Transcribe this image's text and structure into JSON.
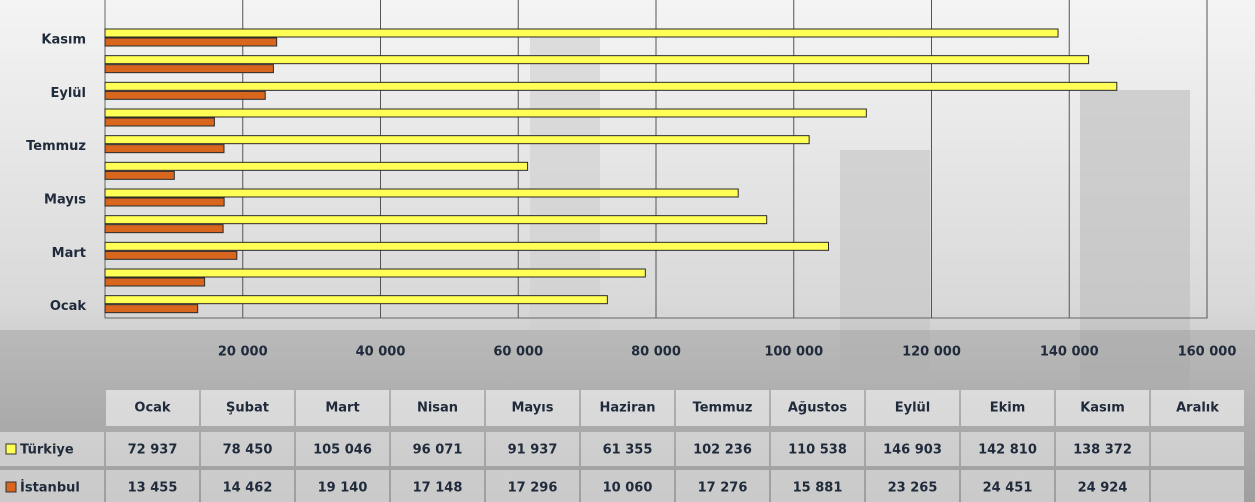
{
  "chart_data": {
    "type": "hbar",
    "categories": [
      "Ocak",
      "Şubat",
      "Mart",
      "Nisan",
      "Mayıs",
      "Haziran",
      "Temmuz",
      "Ağustos",
      "Eylül",
      "Ekim",
      "Kasım",
      "Aralık"
    ],
    "series": [
      {
        "name": "Türkiye",
        "color": "#ffff55",
        "values": [
          72937,
          78450,
          105046,
          96071,
          91937,
          61355,
          102236,
          110538,
          146903,
          142810,
          138372,
          null
        ],
        "value_labels": [
          "72 937",
          "78 450",
          "105 046",
          "96 071",
          "91 937",
          "61 355",
          "102 236",
          "110 538",
          "146 903",
          "142 810",
          "138 372",
          null
        ]
      },
      {
        "name": "İstanbul",
        "color": "#d8661e",
        "values": [
          13455,
          14462,
          19140,
          17148,
          17296,
          10060,
          17276,
          15881,
          23265,
          24451,
          24924,
          null
        ],
        "value_labels": [
          "13 455",
          "14 462",
          "19 140",
          "17 148",
          "17 296",
          "10 060",
          "17 276",
          "15 881",
          "23 265",
          "24 451",
          "24 924",
          null
        ]
      }
    ],
    "xlim": [
      0,
      160000
    ],
    "xticks": [
      {
        "value": 20000,
        "label": "20 000"
      },
      {
        "value": 40000,
        "label": "40 000"
      },
      {
        "value": 60000,
        "label": "60 000"
      },
      {
        "value": 80000,
        "label": "80 000"
      },
      {
        "value": 100000,
        "label": "100 000"
      },
      {
        "value": 120000,
        "label": "120 000"
      },
      {
        "value": 140000,
        "label": "140 000"
      },
      {
        "value": 160000,
        "label": "160 000"
      }
    ],
    "grid": true
  }
}
